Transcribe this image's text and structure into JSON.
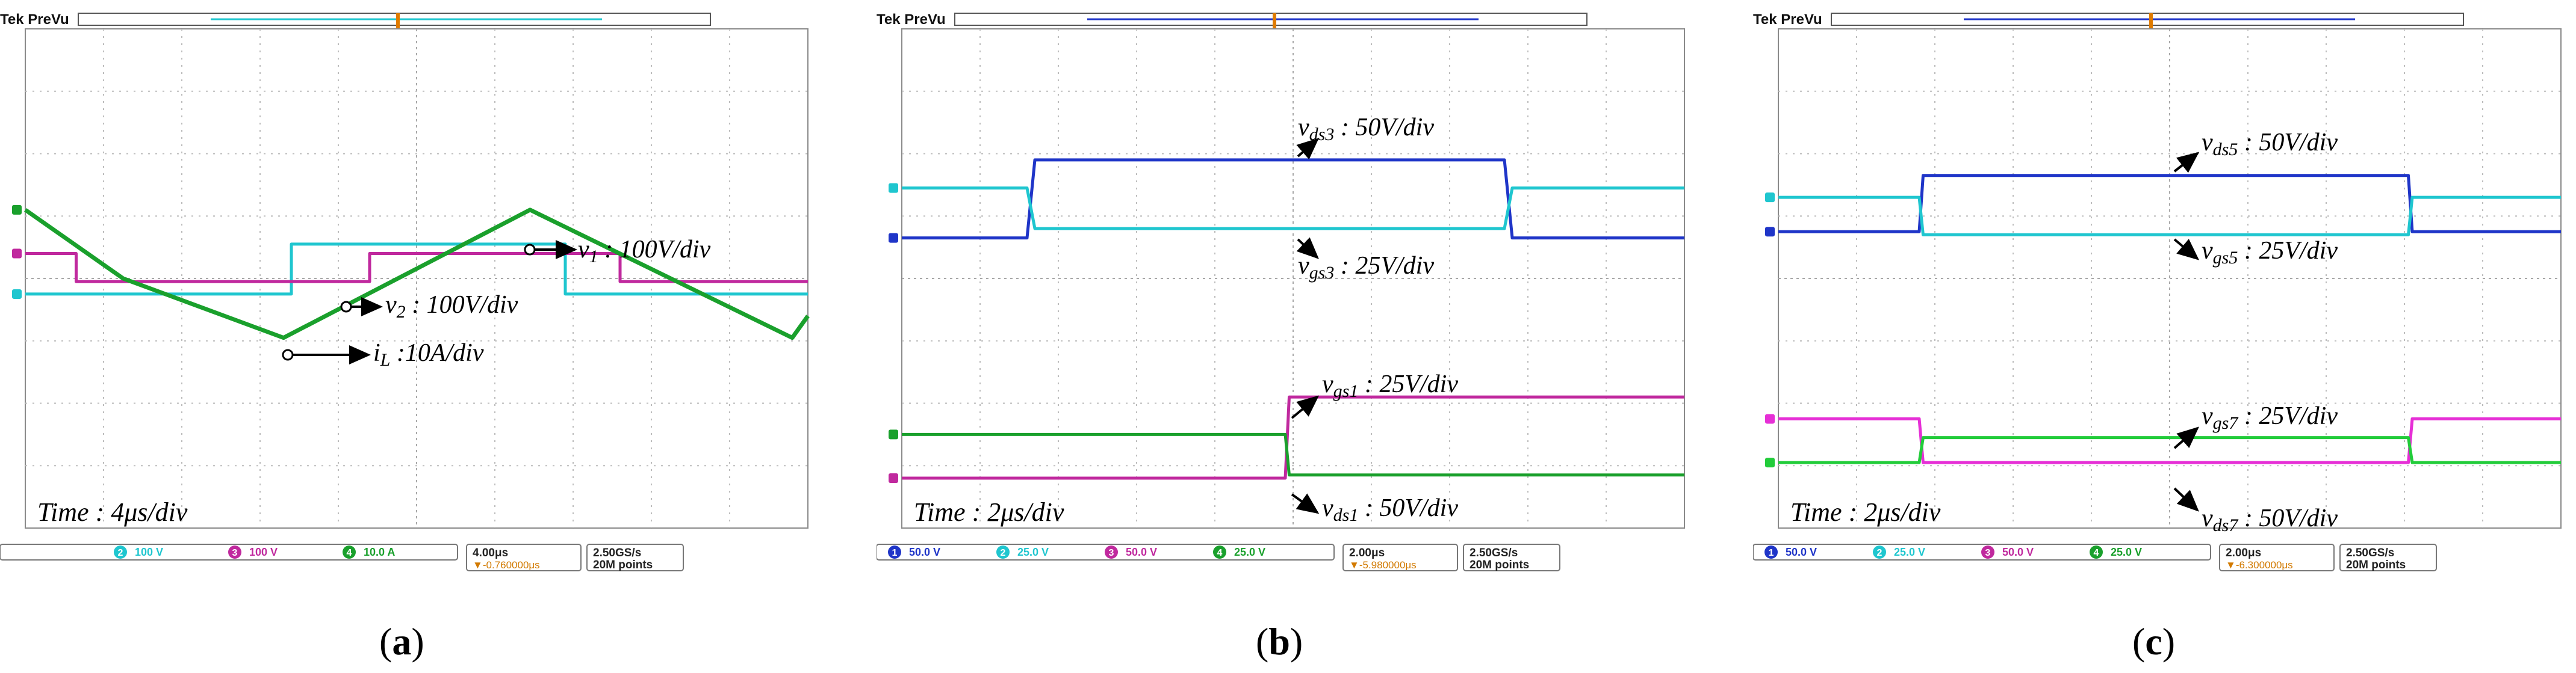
{
  "panels": [
    {
      "header": "Tek PreVu",
      "time_label": "Time : 4μs/div",
      "caption_letter": "a",
      "footer": {
        "channels": [
          {
            "num": "2",
            "scale": "100 V",
            "color": "#1fc6cf"
          },
          {
            "num": "3",
            "scale": "100 V",
            "color": "#c0299e"
          },
          {
            "num": "4",
            "scale": "10.0 A",
            "color": "#1aa02c"
          }
        ],
        "timebase": "4.00μs",
        "trigger": "▼-0.760000μs",
        "rate": "2.50GS/s",
        "points": "20M points"
      },
      "annotations": [
        {
          "sym": "v",
          "sub": "1",
          "value": " : 100V/div"
        },
        {
          "sym": "v",
          "sub": "2",
          "value": " : 100V/div"
        },
        {
          "sym": "i",
          "sub": "L",
          "value": " :10A/div"
        }
      ]
    },
    {
      "header": "Tek PreVu",
      "time_label": "Time : 2μs/div",
      "caption_letter": "b",
      "footer": {
        "channels": [
          {
            "num": "1",
            "scale": "50.0 V",
            "color": "#1f35c8"
          },
          {
            "num": "2",
            "scale": "25.0 V",
            "color": "#1fc6cf"
          },
          {
            "num": "3",
            "scale": "50.0 V",
            "color": "#c0299e"
          },
          {
            "num": "4",
            "scale": "25.0 V",
            "color": "#1aa02c"
          }
        ],
        "timebase": "2.00μs",
        "trigger": "▼-5.980000μs",
        "rate": "2.50GS/s",
        "points": "20M points"
      },
      "annotations": [
        {
          "sym": "v",
          "sub": "ds3",
          "value": " : 50V/div"
        },
        {
          "sym": "v",
          "sub": "gs3",
          "value": " : 25V/div"
        },
        {
          "sym": "v",
          "sub": "gs1",
          "value": " : 25V/div"
        },
        {
          "sym": "v",
          "sub": "ds1",
          "value": " : 50V/div"
        }
      ]
    },
    {
      "header": "Tek PreVu",
      "time_label": "Time : 2μs/div",
      "caption_letter": "c",
      "footer": {
        "channels": [
          {
            "num": "1",
            "scale": "50.0 V",
            "color": "#1f35c8"
          },
          {
            "num": "2",
            "scale": "25.0 V",
            "color": "#1fc6cf"
          },
          {
            "num": "3",
            "scale": "50.0 V",
            "color": "#c0299e"
          },
          {
            "num": "4",
            "scale": "25.0 V",
            "color": "#1aa02c"
          }
        ],
        "timebase": "2.00μs",
        "trigger": "▼-6.300000μs",
        "rate": "2.50GS/s",
        "points": "20M points"
      },
      "annotations": [
        {
          "sym": "v",
          "sub": "ds5",
          "value": " : 50V/div"
        },
        {
          "sym": "v",
          "sub": "gs5",
          "value": " : 25V/div"
        },
        {
          "sym": "v",
          "sub": "gs7",
          "value": " : 25V/div"
        },
        {
          "sym": "v",
          "sub": "ds7",
          "value": " : 50V/div"
        }
      ]
    }
  ],
  "chart_data": [
    {
      "type": "line",
      "x_unit": "div",
      "xlim": [
        0,
        10
      ],
      "ylim": [
        -4,
        4
      ],
      "series": [
        {
          "name": "v1",
          "color": "#1fc6cf",
          "x": [
            0,
            0.22,
            3.4,
            3.4,
            6.9,
            6.9,
            10
          ],
          "y": [
            -0.25,
            -0.25,
            -0.25,
            0.55,
            0.55,
            -0.25,
            -0.25
          ]
        },
        {
          "name": "v2",
          "color": "#c0299e",
          "x": [
            0,
            0.65,
            0.65,
            4.4,
            4.4,
            7.6,
            7.6,
            10
          ],
          "y": [
            0.4,
            0.4,
            -0.05,
            -0.05,
            0.4,
            0.4,
            -0.05,
            -0.05
          ]
        },
        {
          "name": "iL",
          "color": "#1aa02c",
          "x": [
            0,
            1.25,
            3.3,
            6.45,
            9.8,
            10
          ],
          "y": [
            1.1,
            0.0,
            -0.95,
            1.1,
            -0.95,
            -0.6
          ]
        }
      ]
    },
    {
      "type": "line",
      "x_unit": "div",
      "xlim": [
        0,
        10
      ],
      "ylim": [
        -4,
        4
      ],
      "series": [
        {
          "name": "vds3",
          "color": "#1f35c8",
          "x": [
            0,
            1.6,
            1.7,
            7.7,
            7.8,
            10
          ],
          "y": [
            0.65,
            0.65,
            1.9,
            1.9,
            0.65,
            0.65
          ]
        },
        {
          "name": "vgs3",
          "color": "#1fc6cf",
          "x": [
            0,
            1.6,
            1.7,
            7.7,
            7.8,
            10
          ],
          "y": [
            1.45,
            1.45,
            0.8,
            0.8,
            1.45,
            1.45
          ]
        },
        {
          "name": "vgs1",
          "color": "#c0299e",
          "x": [
            0,
            4.9,
            4.95,
            10
          ],
          "y": [
            -3.2,
            -3.2,
            -1.9,
            -1.9
          ]
        },
        {
          "name": "vds1",
          "color": "#1aa02c",
          "x": [
            0,
            4.9,
            4.95,
            10
          ],
          "y": [
            -2.5,
            -2.5,
            -3.15,
            -3.15
          ]
        }
      ]
    },
    {
      "type": "line",
      "x_unit": "div",
      "xlim": [
        0,
        10
      ],
      "ylim": [
        -4,
        4
      ],
      "series": [
        {
          "name": "vds5",
          "color": "#1f35c8",
          "x": [
            0,
            1.8,
            1.85,
            8.05,
            8.1,
            10
          ],
          "y": [
            0.75,
            0.75,
            1.65,
            1.65,
            0.75,
            0.75
          ]
        },
        {
          "name": "vgs5",
          "color": "#1fc6cf",
          "x": [
            0,
            1.8,
            1.85,
            8.05,
            8.1,
            10
          ],
          "y": [
            1.3,
            1.3,
            0.7,
            0.7,
            1.3,
            1.3
          ]
        },
        {
          "name": "vgs7",
          "color": "#e62fd6",
          "x": [
            0,
            1.8,
            1.85,
            8.05,
            8.1,
            10
          ],
          "y": [
            -2.25,
            -2.25,
            -2.95,
            -2.95,
            -2.25,
            -2.25
          ]
        },
        {
          "name": "vds7",
          "color": "#22cc3a",
          "x": [
            0,
            1.8,
            1.85,
            8.05,
            8.1,
            10
          ],
          "y": [
            -2.95,
            -2.95,
            -2.55,
            -2.55,
            -2.95,
            -2.95
          ]
        }
      ]
    }
  ]
}
